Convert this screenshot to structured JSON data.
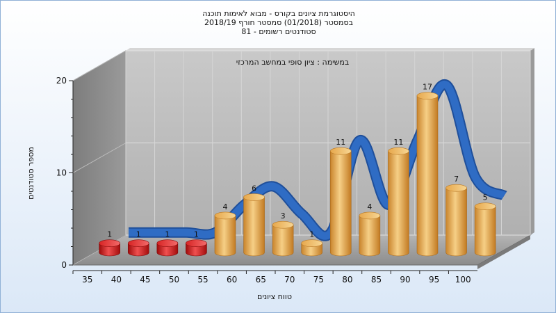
{
  "chart_data": {
    "type": "bar",
    "title_lines": [
      "היסטוגרמת ציונים בקורס - מבוא לאימות תוכנה",
      "בסמסטר  (01/2018)  סמסטר חורף 2018/19",
      "סטודנטים רשומים - 81"
    ],
    "subtitle": "במשימה : ציון סופי במחשב המרכזי",
    "xlabel": "טווח ציונים",
    "ylabel": "מספר סטודנטים",
    "categories": [
      "35",
      "40",
      "45",
      "50",
      "55",
      "60",
      "65",
      "70",
      "75",
      "80",
      "85",
      "90",
      "95",
      "100"
    ],
    "values": [
      1,
      1,
      1,
      1,
      4,
      6,
      3,
      1,
      11,
      4,
      11,
      17,
      7,
      5
    ],
    "y_ticks": [
      "0",
      "10",
      "20"
    ],
    "ylim": [
      0,
      20
    ],
    "grid": true,
    "colors": {
      "low": "#d41414",
      "pass": "#e8a94a",
      "curve": "#2f6cc4"
    }
  }
}
